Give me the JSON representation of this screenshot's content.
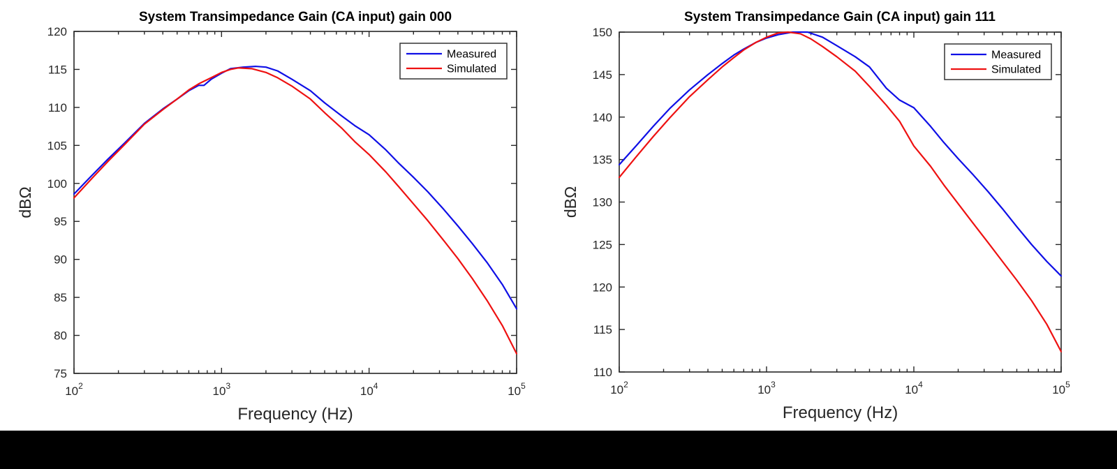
{
  "window": {
    "background_color": "#ffffff",
    "bottom_bar_color": "#000000"
  },
  "style_colors": {
    "axis_color": "#262626",
    "title_color": "#000000",
    "measured_color": "#0f0fe6",
    "simulated_color": "#ee1111",
    "legend_border_color": "#333333",
    "legend_background": "#ffffff"
  },
  "chart_data": [
    {
      "type": "line",
      "title": "System Transimpedance Gain (CA input) gain 000",
      "xlabel": "Frequency (Hz)",
      "ylabel": "dBΩ",
      "xscale": "log",
      "xlim": [
        100,
        100000
      ],
      "ylim": [
        75,
        120
      ],
      "ytick_step": 5,
      "ytick_labels": [
        "75",
        "80",
        "85",
        "90",
        "95",
        "100",
        "105",
        "110",
        "115",
        "120"
      ],
      "xtick_labels": [
        "10^2",
        "10^3",
        "10^4",
        "10^5"
      ],
      "grid": false,
      "legend_position": "top-right",
      "legend": [
        "Measured",
        "Simulated"
      ],
      "series": [
        {
          "name": "Measured",
          "color": "#0f0fe6",
          "x": [
            100,
            130,
            170,
            220,
            300,
            400,
            500,
            600,
            700,
            760,
            850,
            1000,
            1150,
            1400,
            1700,
            2000,
            2400,
            3000,
            4000,
            5000,
            6500,
            8000,
            10000,
            13000,
            16000,
            20000,
            25000,
            32000,
            40000,
            50000,
            63000,
            80000,
            100000
          ],
          "y": [
            98.6,
            100.9,
            103.2,
            105.3,
            107.9,
            109.8,
            111.1,
            112.2,
            112.9,
            112.9,
            113.7,
            114.5,
            115.1,
            115.3,
            115.4,
            115.3,
            114.8,
            113.7,
            112.2,
            110.6,
            108.9,
            107.6,
            106.4,
            104.4,
            102.6,
            100.8,
            98.9,
            96.6,
            94.4,
            92.1,
            89.6,
            86.7,
            83.5
          ]
        },
        {
          "name": "Simulated",
          "color": "#ee1111",
          "x": [
            100,
            130,
            170,
            220,
            300,
            400,
            500,
            600,
            700,
            850,
            1000,
            1150,
            1300,
            1600,
            2000,
            2400,
            3000,
            4000,
            5000,
            6500,
            8000,
            10000,
            13000,
            16000,
            20000,
            25000,
            32000,
            40000,
            50000,
            63000,
            80000,
            100000
          ],
          "y": [
            98.1,
            100.5,
            102.9,
            105.1,
            107.8,
            109.7,
            111.1,
            112.3,
            113.1,
            113.9,
            114.6,
            115.0,
            115.2,
            115.1,
            114.6,
            113.9,
            112.8,
            111.1,
            109.3,
            107.3,
            105.5,
            103.8,
            101.5,
            99.5,
            97.3,
            95.1,
            92.5,
            90.1,
            87.5,
            84.6,
            81.3,
            77.6
          ]
        }
      ]
    },
    {
      "type": "line",
      "title": "System Transimpedance Gain (CA input) gain 111",
      "xlabel": "Frequency (Hz)",
      "ylabel": "dBΩ",
      "xscale": "log",
      "xlim": [
        100,
        100000
      ],
      "ylim": [
        110,
        150
      ],
      "ytick_step": 5,
      "ytick_labels": [
        "110",
        "115",
        "120",
        "125",
        "130",
        "135",
        "140",
        "145",
        "150"
      ],
      "xtick_labels": [
        "10^2",
        "10^3",
        "10^4",
        "10^5"
      ],
      "grid": false,
      "legend_position": "top-right",
      "legend": [
        "Measured",
        "Simulated"
      ],
      "series": [
        {
          "name": "Measured",
          "color": "#0f0fe6",
          "x": [
            100,
            130,
            170,
            220,
            300,
            400,
            500,
            600,
            700,
            850,
            1000,
            1200,
            1500,
            1900,
            2400,
            3000,
            4000,
            5000,
            6500,
            8000,
            10000,
            13000,
            16000,
            20000,
            25000,
            32000,
            40000,
            50000,
            63000,
            80000,
            100000
          ],
          "y": [
            134.4,
            136.6,
            138.9,
            141.0,
            143.2,
            145.0,
            146.3,
            147.3,
            148.0,
            148.8,
            149.3,
            149.7,
            150.0,
            150.0,
            149.4,
            148.4,
            147.1,
            145.9,
            143.4,
            142.0,
            141.1,
            138.9,
            137.0,
            135.1,
            133.3,
            131.2,
            129.2,
            127.1,
            125.0,
            123.0,
            121.3
          ]
        },
        {
          "name": "Simulated",
          "color": "#ee1111",
          "x": [
            100,
            130,
            170,
            220,
            300,
            400,
            500,
            600,
            700,
            850,
            1000,
            1200,
            1400,
            1700,
            2000,
            2400,
            3000,
            4000,
            5000,
            6500,
            8000,
            10000,
            13000,
            16000,
            20000,
            25000,
            32000,
            40000,
            50000,
            63000,
            80000,
            100000
          ],
          "y": [
            132.9,
            135.3,
            137.7,
            139.9,
            142.4,
            144.4,
            145.9,
            147.0,
            147.9,
            148.8,
            149.4,
            149.9,
            150.0,
            149.8,
            149.2,
            148.3,
            147.1,
            145.4,
            143.6,
            141.4,
            139.5,
            136.6,
            134.2,
            132.0,
            129.8,
            127.6,
            125.2,
            123.0,
            120.8,
            118.4,
            115.6,
            112.4
          ]
        }
      ]
    }
  ]
}
